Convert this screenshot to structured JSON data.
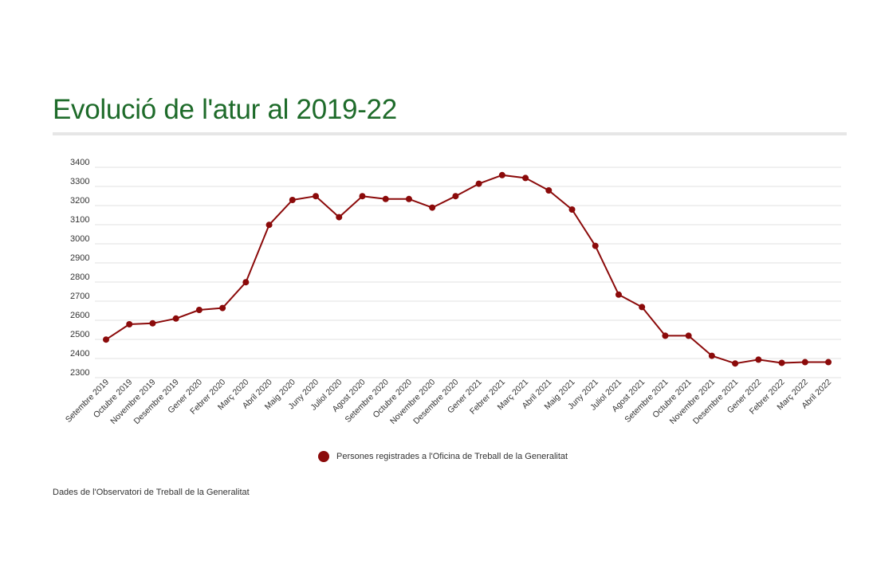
{
  "title": "Evolució de l'atur al 2019-22",
  "source": "Dades de l'Observatori de Treball de la Generalitat",
  "colors": {
    "title": "#1e6b2a",
    "series": "#8b0a0a",
    "grid": "#e2e2e2"
  },
  "chart_data": {
    "type": "line",
    "title": "Evolució de l'atur al 2019-22",
    "xlabel": "",
    "ylabel": "",
    "ylim": [
      2300,
      3400
    ],
    "yticks": [
      2300,
      2400,
      2500,
      2600,
      2700,
      2800,
      2900,
      3000,
      3100,
      3200,
      3300,
      3400
    ],
    "grid": true,
    "legend_position": "bottom",
    "categories": [
      "Setembre 2019",
      "Octubre 2019",
      "Novembre 2019",
      "Desembre 2019",
      "Gener 2020",
      "Febrer 2020",
      "Març 2020",
      "Abril 2020",
      "Maig 2020",
      "Juny 2020",
      "Juliol 2020",
      "Agost 2020",
      "Setembre 2020",
      "Octubre 2020",
      "Novembre 2020",
      "Desembre 2020",
      "Gener 2021",
      "Febrer 2021",
      "Març 2021",
      "Abril 2021",
      "Maig 2021",
      "Juny 2021",
      "Juliol 2021",
      "Agost 2021",
      "Setembre 2021",
      "Octubre 2021",
      "Novembre 2021",
      "Desembre 2021",
      "Gener 2022",
      "Febrer 2022",
      "Març 2022",
      "Abril 2022"
    ],
    "series": [
      {
        "name": "Persones registrades a l'Oficina de Treball de la Generalitat",
        "color": "#8b0a0a",
        "values": [
          2470,
          2550,
          2555,
          2580,
          2625,
          2635,
          2770,
          3070,
          3200,
          3220,
          3110,
          3220,
          3205,
          3205,
          3160,
          3220,
          3285,
          3330,
          3315,
          3250,
          3150,
          2960,
          2705,
          2640,
          2490,
          2490,
          2385,
          2345,
          2365,
          2348,
          2352,
          2352
        ]
      }
    ]
  }
}
